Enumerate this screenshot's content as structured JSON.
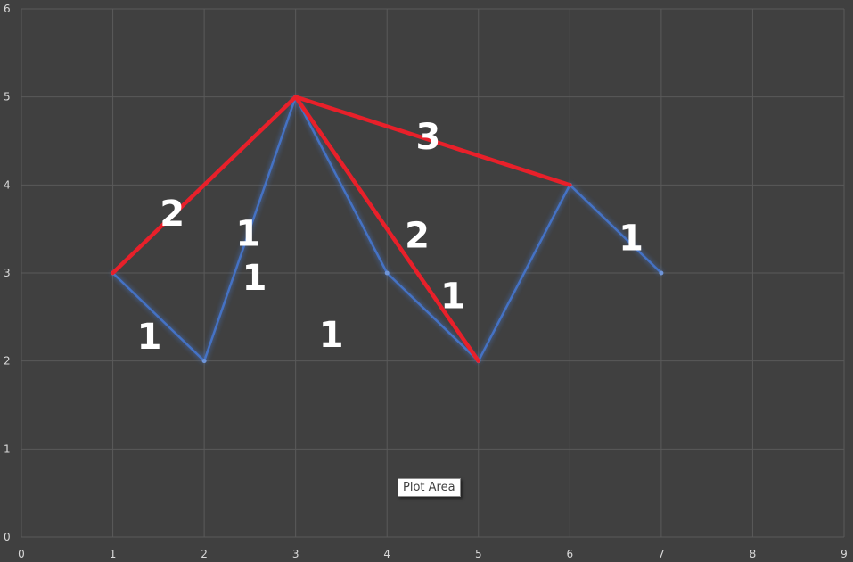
{
  "tooltip": "Plot Area",
  "colors": {
    "background": "#404040",
    "grid": "#5a5a5a",
    "tick_text": "#d9d9d9",
    "blue_series": "#4472C4",
    "red_series": "#E8202A",
    "label_text": "#FFFFFF"
  },
  "chart_data": {
    "type": "scatter",
    "xlim": [
      0,
      9
    ],
    "ylim": [
      0,
      6
    ],
    "x_ticks": [
      "0",
      "1",
      "2",
      "3",
      "4",
      "5",
      "6",
      "7",
      "8",
      "9"
    ],
    "y_ticks": [
      "0",
      "1",
      "2",
      "3",
      "4",
      "5",
      "6"
    ],
    "grid": true,
    "series": [
      {
        "color": "#4472C4",
        "points": [
          [
            1,
            3
          ],
          [
            2,
            2
          ],
          [
            3,
            5
          ],
          [
            4,
            3
          ],
          [
            5,
            2
          ],
          [
            6,
            4
          ],
          [
            7,
            3
          ]
        ]
      },
      {
        "color": "#E8202A",
        "points": [
          [
            1,
            3
          ],
          [
            3,
            5
          ],
          [
            5,
            2
          ]
        ]
      },
      {
        "color": "#E8202A",
        "points": [
          [
            3,
            5
          ],
          [
            6,
            4
          ]
        ]
      }
    ],
    "annotations": [
      {
        "text": "1",
        "x": 1.4,
        "y": 2.27
      },
      {
        "text": "1",
        "x": 2.55,
        "y": 2.94
      },
      {
        "text": "1",
        "x": 2.48,
        "y": 3.44
      },
      {
        "text": "1",
        "x": 3.39,
        "y": 2.29
      },
      {
        "text": "1",
        "x": 4.72,
        "y": 2.73
      },
      {
        "text": "1",
        "x": 6.67,
        "y": 3.39
      },
      {
        "text": "2",
        "x": 1.65,
        "y": 3.67
      },
      {
        "text": "2",
        "x": 4.33,
        "y": 3.42
      },
      {
        "text": "3",
        "x": 4.45,
        "y": 4.54
      }
    ]
  }
}
